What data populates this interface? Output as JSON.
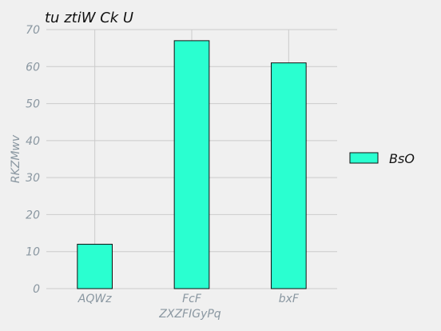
{
  "chart_data": {
    "type": "bar",
    "title": "tu ztiW Ck U",
    "xlabel": "ZXZFIGyPq",
    "ylabel": "RKZMwv",
    "categories": [
      "AQWz",
      "FcF",
      "bxF"
    ],
    "series": [
      {
        "name": "BsO",
        "values": [
          12,
          67,
          61
        ],
        "color": "#2affd0"
      }
    ],
    "ylim": [
      0,
      70
    ],
    "yticks": [
      0,
      10,
      20,
      30,
      40,
      50,
      60,
      70
    ],
    "grid": true,
    "legend_position": "right",
    "background_color": "#f0f0f0",
    "bar_edge_color": "#111111"
  }
}
